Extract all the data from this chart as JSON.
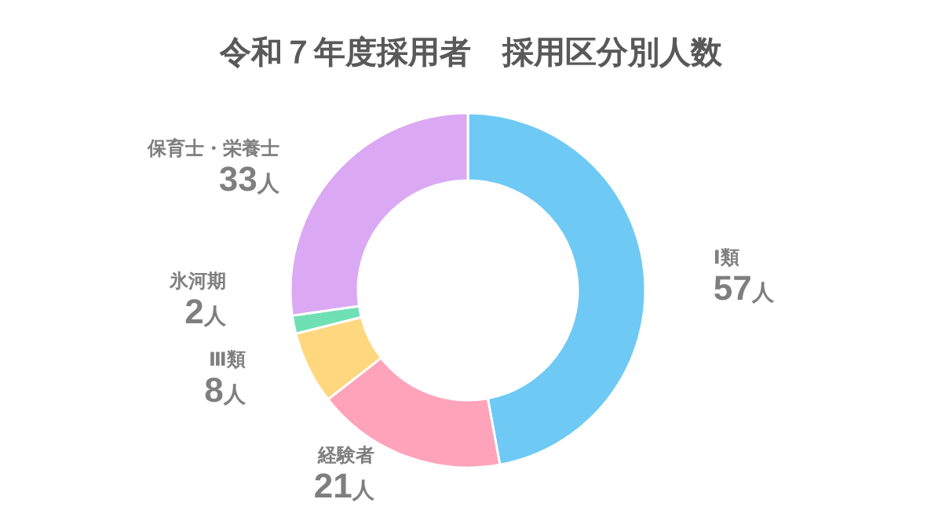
{
  "chart_data": {
    "type": "donut",
    "title": "令和７年度採用者　採用区分別人数",
    "categories": [
      "Ⅰ類",
      "経験者",
      "Ⅲ類",
      "氷河期",
      "保育士・栄養士"
    ],
    "values": [
      57,
      21,
      8,
      2,
      33
    ],
    "value_labels": [
      "57人",
      "21人",
      "8人",
      "2人",
      "33人"
    ],
    "colors": [
      "#6ec9f5",
      "#ffa3ba",
      "#ffd77f",
      "#6fe0b4",
      "#dba9f3"
    ]
  }
}
